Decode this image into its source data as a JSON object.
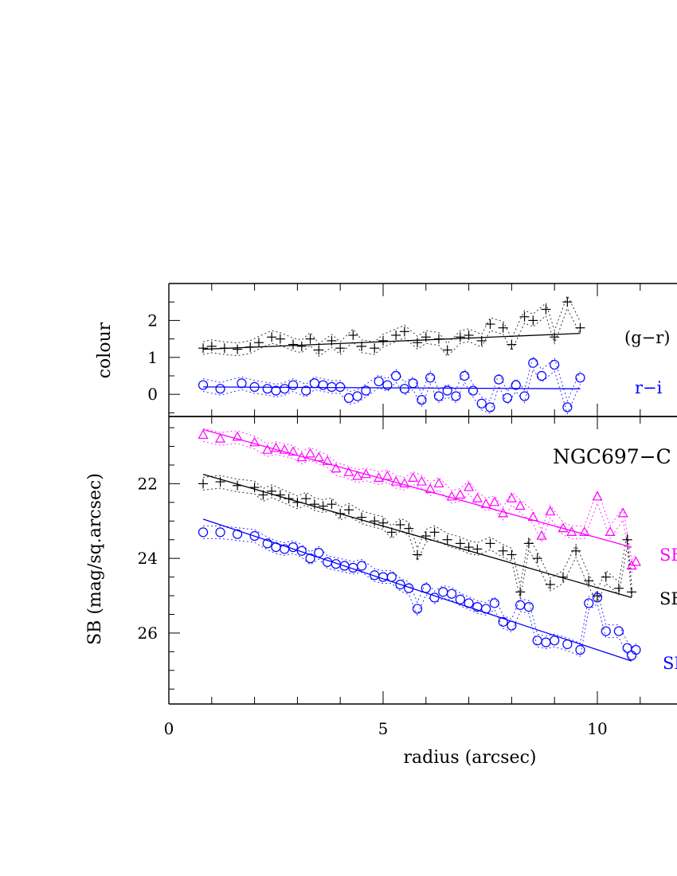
{
  "chart_data": [
    {
      "type": "scatter",
      "panel": "colour",
      "ylabel": "colour",
      "xlabel": "radius (arcsec)",
      "xlim": [
        0,
        12
      ],
      "ylim": [
        -0.6,
        3.0
      ],
      "yticks": [
        0,
        1,
        2
      ],
      "xticks": [
        0,
        5,
        10
      ],
      "series": [
        {
          "name": "(g−r)",
          "marker": "plus",
          "color": "#000000",
          "x": [
            0.8,
            1.0,
            1.3,
            1.6,
            1.9,
            2.1,
            2.4,
            2.6,
            2.9,
            3.1,
            3.3,
            3.5,
            3.8,
            4.0,
            4.3,
            4.5,
            4.8,
            5.0,
            5.3,
            5.5,
            5.8,
            6.0,
            6.3,
            6.5,
            6.8,
            7.0,
            7.3,
            7.5,
            7.8,
            8.0,
            8.3,
            8.5,
            8.8,
            9.0,
            9.3,
            9.6
          ],
          "y": [
            1.25,
            1.3,
            1.25,
            1.22,
            1.28,
            1.4,
            1.55,
            1.5,
            1.35,
            1.3,
            1.5,
            1.2,
            1.45,
            1.25,
            1.6,
            1.3,
            1.25,
            1.45,
            1.6,
            1.7,
            1.4,
            1.55,
            1.5,
            1.2,
            1.55,
            1.6,
            1.45,
            1.9,
            1.8,
            1.35,
            2.1,
            2.0,
            2.3,
            1.55,
            2.5,
            1.8
          ],
          "fit": {
            "x0": 0.8,
            "y0": 1.22,
            "x1": 9.6,
            "y1": 1.65
          }
        },
        {
          "name": "r−i",
          "marker": "circle",
          "color": "#0000ff",
          "x": [
            0.8,
            1.2,
            1.7,
            2.0,
            2.3,
            2.5,
            2.7,
            2.9,
            3.2,
            3.4,
            3.6,
            3.8,
            4.0,
            4.2,
            4.4,
            4.6,
            4.9,
            5.1,
            5.3,
            5.5,
            5.7,
            5.9,
            6.1,
            6.3,
            6.5,
            6.7,
            6.9,
            7.1,
            7.3,
            7.5,
            7.7,
            7.9,
            8.1,
            8.3,
            8.5,
            8.7,
            9.0,
            9.3,
            9.6
          ],
          "y": [
            0.25,
            0.15,
            0.3,
            0.2,
            0.15,
            0.1,
            0.15,
            0.25,
            0.1,
            0.3,
            0.25,
            0.2,
            0.2,
            -0.1,
            -0.05,
            0.1,
            0.35,
            0.25,
            0.5,
            0.15,
            0.3,
            -0.15,
            0.45,
            -0.05,
            0.1,
            -0.05,
            0.5,
            0.1,
            -0.25,
            -0.35,
            0.4,
            -0.1,
            0.25,
            -0.05,
            0.85,
            0.5,
            0.8,
            -0.35,
            0.45
          ],
          "fit": {
            "x0": 0.8,
            "y0": 0.2,
            "x1": 9.6,
            "y1": 0.15
          }
        }
      ],
      "labels": [
        "(g−r)",
        "r−i"
      ]
    },
    {
      "type": "scatter",
      "panel": "surface-brightness",
      "title": "NGC697−C",
      "ylabel": "SB (mag/sq.arcsec)",
      "xlabel": "radius (arcsec)",
      "xlim": [
        0,
        12
      ],
      "ylim": [
        27.9,
        20.2
      ],
      "yticks": [
        22,
        24,
        26
      ],
      "xticks": [
        0,
        5,
        10
      ],
      "series": [
        {
          "name": "SB_g",
          "marker": "triangle",
          "color": "#ff00ff",
          "x": [
            0.8,
            1.2,
            1.6,
            2.0,
            2.3,
            2.5,
            2.7,
            2.9,
            3.1,
            3.3,
            3.5,
            3.7,
            3.9,
            4.2,
            4.4,
            4.6,
            4.9,
            5.1,
            5.3,
            5.5,
            5.7,
            5.9,
            6.1,
            6.3,
            6.6,
            6.8,
            7.0,
            7.2,
            7.4,
            7.6,
            7.8,
            8.0,
            8.2,
            8.5,
            8.7,
            8.9,
            9.2,
            9.4,
            9.7,
            10.0,
            10.3,
            10.6,
            10.8,
            10.9
          ],
          "y": [
            20.7,
            20.8,
            20.75,
            20.9,
            21.1,
            21.05,
            21.1,
            21.15,
            21.3,
            21.2,
            21.3,
            21.4,
            21.6,
            21.7,
            21.8,
            21.75,
            21.85,
            21.8,
            21.95,
            22.0,
            21.85,
            21.95,
            22.15,
            22.0,
            22.35,
            22.3,
            22.1,
            22.4,
            22.55,
            22.5,
            22.8,
            22.4,
            22.6,
            22.9,
            23.4,
            22.75,
            23.2,
            23.3,
            23.3,
            22.35,
            23.3,
            22.8,
            24.2,
            24.1
          ],
          "fit": {
            "x0": 0.8,
            "y0": 20.55,
            "x1": 10.8,
            "y1": 23.7
          }
        },
        {
          "name": "SB_r",
          "marker": "plus",
          "color": "#000000",
          "x": [
            0.8,
            1.2,
            1.6,
            2.0,
            2.2,
            2.4,
            2.6,
            2.8,
            3.0,
            3.2,
            3.4,
            3.6,
            3.8,
            4.0,
            4.2,
            4.5,
            4.8,
            5.0,
            5.2,
            5.4,
            5.6,
            5.8,
            6.0,
            6.2,
            6.5,
            6.8,
            7.0,
            7.2,
            7.5,
            7.8,
            8.0,
            8.2,
            8.4,
            8.6,
            8.9,
            9.2,
            9.5,
            9.8,
            10.0,
            10.2,
            10.5,
            10.7,
            10.8
          ],
          "y": [
            22.0,
            21.95,
            22.05,
            22.1,
            22.3,
            22.2,
            22.3,
            22.4,
            22.5,
            22.4,
            22.55,
            22.6,
            22.55,
            22.8,
            22.7,
            22.9,
            23.0,
            23.05,
            23.3,
            23.1,
            23.2,
            23.9,
            23.4,
            23.3,
            23.5,
            23.6,
            23.7,
            23.75,
            23.6,
            23.8,
            23.9,
            24.9,
            23.6,
            24.0,
            24.7,
            24.5,
            23.8,
            24.6,
            25.0,
            24.5,
            24.8,
            23.5,
            24.9
          ],
          "fit": {
            "x0": 0.8,
            "y0": 21.75,
            "x1": 10.8,
            "y1": 25.05
          }
        },
        {
          "name": "SB_i",
          "marker": "circle",
          "color": "#0000ff",
          "x": [
            0.8,
            1.2,
            1.6,
            2.0,
            2.3,
            2.5,
            2.7,
            2.9,
            3.1,
            3.3,
            3.5,
            3.7,
            3.9,
            4.1,
            4.3,
            4.5,
            4.8,
            5.0,
            5.2,
            5.4,
            5.6,
            5.8,
            6.0,
            6.2,
            6.4,
            6.6,
            6.8,
            7.0,
            7.2,
            7.4,
            7.6,
            7.8,
            8.0,
            8.2,
            8.4,
            8.6,
            8.8,
            9.0,
            9.3,
            9.6,
            9.8,
            10.0,
            10.2,
            10.5,
            10.7,
            10.8,
            10.9
          ],
          "y": [
            23.3,
            23.3,
            23.35,
            23.4,
            23.6,
            23.7,
            23.75,
            23.7,
            23.8,
            24.0,
            23.85,
            24.1,
            24.15,
            24.2,
            24.25,
            24.2,
            24.45,
            24.5,
            24.5,
            24.7,
            24.8,
            25.35,
            24.8,
            25.05,
            24.9,
            24.95,
            25.1,
            25.2,
            25.3,
            25.35,
            25.2,
            25.7,
            25.8,
            25.25,
            25.3,
            26.2,
            26.25,
            26.2,
            26.3,
            26.45,
            25.2,
            25.05,
            25.95,
            25.95,
            26.4,
            26.6,
            26.45
          ],
          "fit": {
            "x0": 0.8,
            "y0": 22.95,
            "x1": 10.8,
            "y1": 26.75
          }
        }
      ],
      "labels": [
        "SB_g",
        "SB_r",
        "SB_i"
      ]
    }
  ]
}
